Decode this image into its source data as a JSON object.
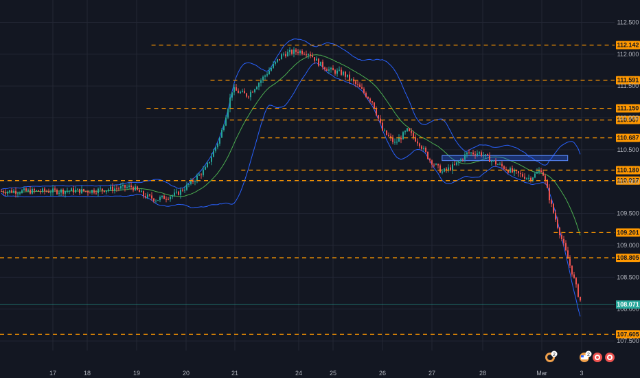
{
  "chart_data": {
    "type": "candlestick",
    "colors": {
      "background": "#131722",
      "grid": "#232734",
      "up": "#26a69a",
      "down": "#ef5350",
      "level_line": "#ff9800",
      "level_label_bg": "#ff9800",
      "bollinger": "#2962ff",
      "moving_average": "#4caf50",
      "current_price_bg": "#26a69a",
      "zone_fill": "#2962ff",
      "axis_text": "#b2b5be"
    },
    "y_axis": {
      "min": 107.35,
      "max": 112.85,
      "ticks": [
        "107.500",
        "108.000",
        "108.500",
        "109.000",
        "109.500",
        "110.000",
        "110.500",
        "111.000",
        "111.500",
        "112.000",
        "112.500"
      ]
    },
    "x_axis": {
      "ticks": [
        "17",
        "18",
        "19",
        "20",
        "21",
        "24",
        "25",
        "26",
        "27",
        "28",
        "Mar",
        "3"
      ]
    },
    "levels": [
      {
        "price": 112.142,
        "label": "112.142",
        "start_day": 2.3
      },
      {
        "price": 111.591,
        "label": "111.591",
        "start_day": 3.5
      },
      {
        "price": 111.15,
        "label": "111.150",
        "start_day": 2.2
      },
      {
        "price": 110.967,
        "label": "110.967",
        "start_day": 3.9
      },
      {
        "price": 110.687,
        "label": "110.687",
        "start_day": 4.4
      },
      {
        "price": 110.18,
        "label": "110.180",
        "start_day": 4.1
      },
      {
        "price": 110.017,
        "label": "110.017",
        "start_day": 0.0
      },
      {
        "price": 109.201,
        "label": "109.201",
        "start_day": 10.3
      },
      {
        "price": 108.805,
        "label": "108.805",
        "start_day": 0.0
      },
      {
        "price": 107.605,
        "label": "107.605",
        "start_day": 0.0
      }
    ],
    "current_price": {
      "price": 108.071,
      "label": "108.071"
    },
    "zone": {
      "day_start": 8.2,
      "day_end": 10.65,
      "price_low": 110.33,
      "price_high": 110.41
    },
    "price_path": [
      [
        0.0,
        109.85
      ],
      [
        0.6,
        109.86
      ],
      [
        1.0,
        109.85
      ],
      [
        1.4,
        109.88
      ],
      [
        1.9,
        109.92
      ],
      [
        2.15,
        109.78
      ],
      [
        2.4,
        109.72
      ],
      [
        2.8,
        109.8
      ],
      [
        3.1,
        109.98
      ],
      [
        3.4,
        110.2
      ],
      [
        3.7,
        110.7
      ],
      [
        3.95,
        111.45
      ],
      [
        4.2,
        111.35
      ],
      [
        4.5,
        111.7
      ],
      [
        4.75,
        112.0
      ],
      [
        5.0,
        112.05
      ],
      [
        5.3,
        112.02
      ],
      [
        5.6,
        111.85
      ],
      [
        5.9,
        111.75
      ],
      [
        6.2,
        111.7
      ],
      [
        6.5,
        111.5
      ],
      [
        6.8,
        111.25
      ],
      [
        7.0,
        110.8
      ],
      [
        7.25,
        110.6
      ],
      [
        7.5,
        110.8
      ],
      [
        7.75,
        110.6
      ],
      [
        7.95,
        110.35
      ],
      [
        8.2,
        110.15
      ],
      [
        8.45,
        110.25
      ],
      [
        8.7,
        110.45
      ],
      [
        8.95,
        110.45
      ],
      [
        9.2,
        110.3
      ],
      [
        9.5,
        110.15
      ],
      [
        9.8,
        110.05
      ],
      [
        10.0,
        110.2
      ],
      [
        10.25,
        109.6
      ],
      [
        10.5,
        109.1
      ],
      [
        10.75,
        108.6
      ],
      [
        10.95,
        108.15
      ],
      [
        11.05,
        108.05
      ]
    ]
  },
  "toolbar": {
    "event_badge_1": "2",
    "event_badge_2": "2"
  }
}
